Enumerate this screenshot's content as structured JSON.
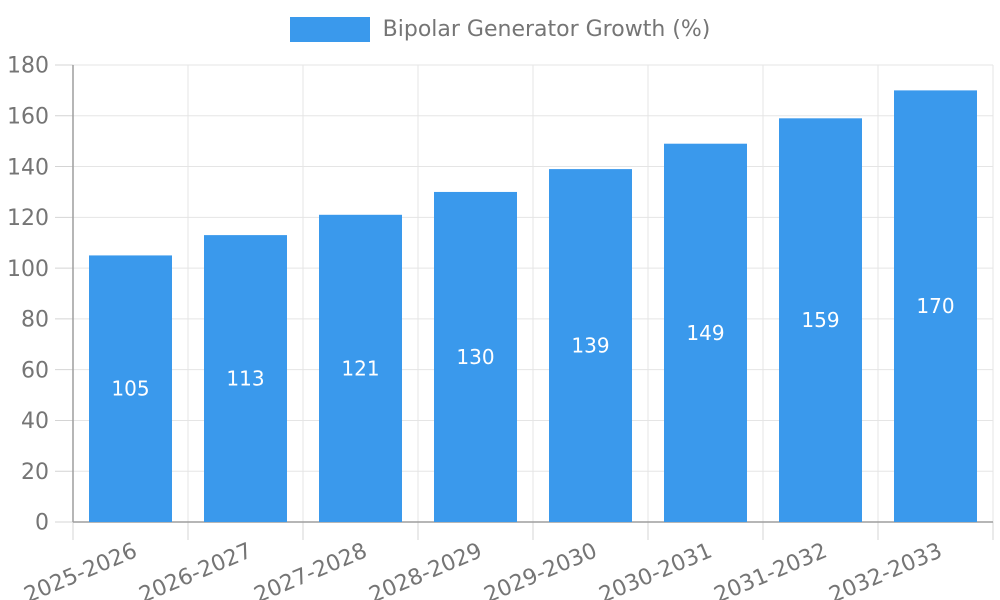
{
  "legend": {
    "label": "Bipolar Generator Growth (%)"
  },
  "chart_data": {
    "type": "bar",
    "title": "",
    "categories": [
      "2025-2026",
      "2026-2027",
      "2027-2028",
      "2028-2029",
      "2029-2030",
      "2030-2031",
      "2031-2032",
      "2032-2033"
    ],
    "series": [
      {
        "name": "Bipolar Generator Growth (%)",
        "values": [
          105,
          113,
          121,
          130,
          139,
          149,
          159,
          170
        ]
      }
    ],
    "xlabel": "",
    "ylabel": "",
    "ylim": [
      0,
      180
    ],
    "ytick_step": 20,
    "ytick_labels": [
      "0",
      "20",
      "40",
      "60",
      "80",
      "100",
      "120",
      "140",
      "160",
      "180"
    ],
    "grid": true,
    "legend_position": "top-center",
    "bar_value_labels_visible": true,
    "x_label_rotation_deg": -23,
    "colors": {
      "bar": "#3a99ec",
      "bar_label": "#ffffff",
      "axis_text": "#757575",
      "legend_text": "#757575",
      "grid_line": "#e5e5e5",
      "tick_line": "#d4d4d4",
      "axis_line": "#9e9e9e",
      "background": "#ffffff"
    }
  }
}
